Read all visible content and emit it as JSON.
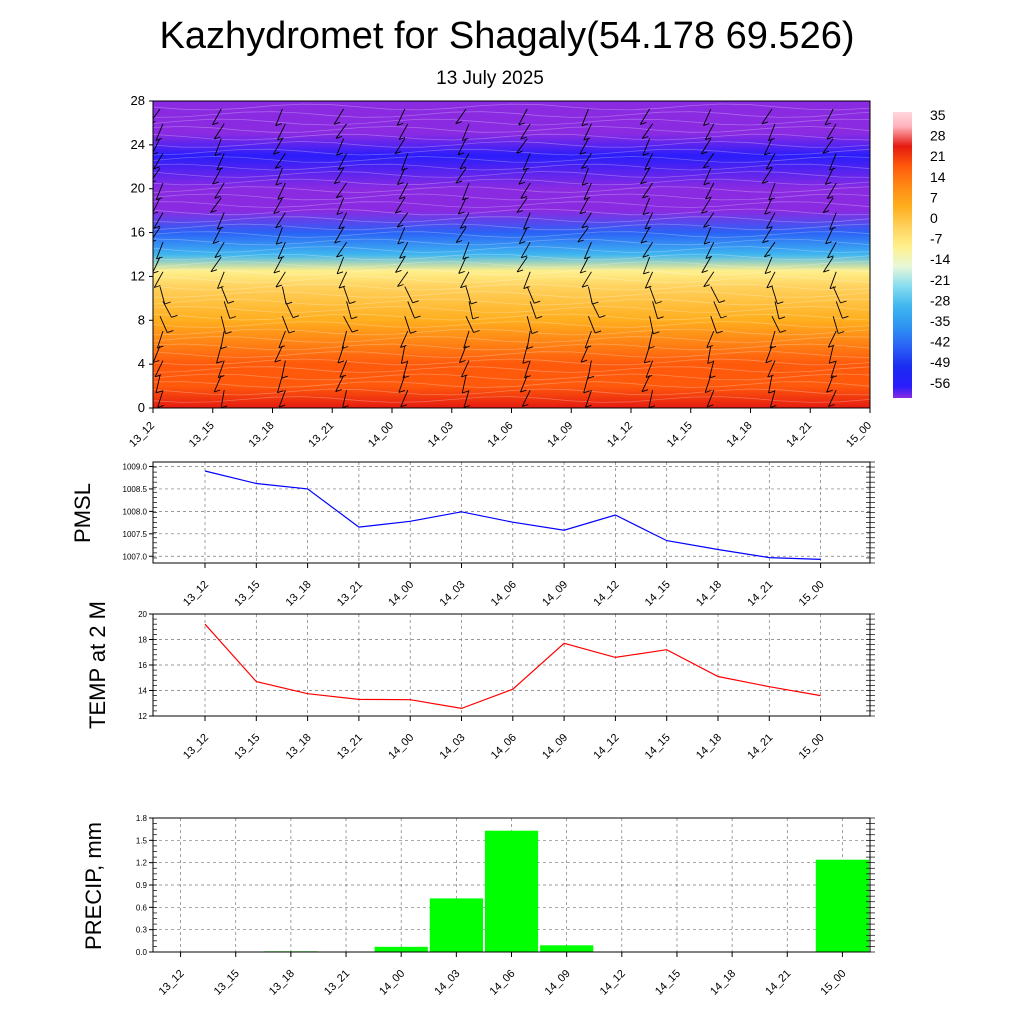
{
  "title": "Kazhydromet for Shagaly(54.178 69.526)",
  "subtitle": "13 July 2025",
  "time_labels": [
    "13_12",
    "13_15",
    "13_18",
    "13_21",
    "14_00",
    "14_03",
    "14_06",
    "14_09",
    "14_12",
    "14_15",
    "14_18",
    "14_21",
    "15_00"
  ],
  "chart_data": [
    {
      "type": "heatmap",
      "name": "cross-section",
      "y_ticks": [
        0,
        4,
        8,
        12,
        16,
        20,
        24,
        28
      ],
      "ylim": [
        0,
        28
      ],
      "x": [
        "13_12",
        "13_15",
        "13_18",
        "13_21",
        "14_00",
        "14_03",
        "14_06",
        "14_09",
        "14_12",
        "14_15",
        "14_18",
        "14_21",
        "15_00"
      ],
      "colorbar_labels": [
        "35",
        "28",
        "21",
        "14",
        "7",
        "0",
        "-7",
        "-14",
        "-21",
        "-28",
        "-35",
        "-42",
        "-49",
        "-56"
      ],
      "colorbar_range": [
        -60,
        40
      ],
      "temperature_profile": [
        [
          0,
          33
        ],
        [
          2,
          26
        ],
        [
          4,
          22
        ],
        [
          8,
          12
        ],
        [
          11,
          3
        ],
        [
          12.5,
          -6
        ],
        [
          14,
          -22
        ],
        [
          16,
          -40
        ],
        [
          18,
          -56
        ],
        [
          20,
          -56
        ],
        [
          23,
          -55
        ],
        [
          25,
          -57
        ],
        [
          28,
          -60
        ]
      ],
      "grid": false,
      "wind_barbs": true
    },
    {
      "type": "line",
      "ylabel": "PMSL",
      "x": [
        "13_12",
        "13_15",
        "13_18",
        "13_21",
        "14_00",
        "14_03",
        "14_06",
        "14_09",
        "14_12",
        "14_15",
        "14_18",
        "14_21",
        "15_00"
      ],
      "y_ticks": [
        "1007.0",
        "1007.5",
        "1008.0",
        "1008.5",
        "1009.0"
      ],
      "ylim": [
        1006.85,
        1009.1
      ],
      "color": "#0000ff",
      "values": [
        1008.9,
        1008.62,
        1008.5,
        1007.65,
        1007.78,
        1007.99,
        1007.76,
        1007.58,
        1007.92,
        1007.35,
        1007.15,
        1006.97,
        1006.93
      ],
      "grid": true
    },
    {
      "type": "line",
      "ylabel": "TEMP at 2 M",
      "x": [
        "13_12",
        "13_15",
        "13_18",
        "13_21",
        "14_00",
        "14_03",
        "14_06",
        "14_09",
        "14_12",
        "14_15",
        "14_18",
        "14_21",
        "15_00"
      ],
      "y_ticks": [
        "12",
        "14",
        "16",
        "18",
        "20"
      ],
      "ylim": [
        12,
        20
      ],
      "color": "#ff0000",
      "values": [
        19.2,
        14.7,
        13.75,
        13.3,
        13.28,
        12.6,
        14.1,
        17.7,
        16.6,
        17.2,
        15.1,
        14.3,
        13.6
      ],
      "grid": true
    },
    {
      "type": "bar",
      "ylabel": "PRECIP, mm",
      "categories": [
        "13_12",
        "13_15",
        "13_18",
        "13_21",
        "14_00",
        "14_03",
        "14_06",
        "14_09",
        "14_12",
        "14_15",
        "14_18",
        "14_21",
        "15_00"
      ],
      "y_ticks": [
        "0.0",
        "0.3",
        "0.6",
        "0.9",
        "1.2",
        "1.5",
        "1.8"
      ],
      "ylim": [
        0,
        1.8
      ],
      "color": "#00ff00",
      "values": [
        0,
        0,
        0.01,
        0,
        0.07,
        0.72,
        1.63,
        0.09,
        0,
        0,
        0,
        0,
        1.24
      ],
      "grid": true
    }
  ]
}
